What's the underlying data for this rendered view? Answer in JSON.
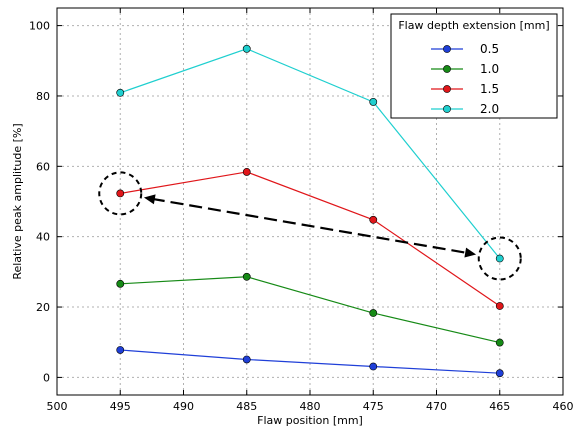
{
  "chart_data": {
    "type": "line",
    "x": [
      495,
      485,
      475,
      465
    ],
    "x_inverted": true,
    "xlim": [
      500,
      460
    ],
    "ylim": [
      -5,
      105
    ],
    "xticks": [
      500,
      495,
      490,
      485,
      480,
      475,
      470,
      465,
      460
    ],
    "yticks": [
      0,
      20,
      40,
      60,
      80,
      100
    ],
    "xlabel": "Flaw position [mm]",
    "ylabel": "Relative peak amplitude [%]",
    "grid": true,
    "legend": {
      "title": "Flaw depth extension [mm]",
      "placement": "top-right"
    },
    "series": [
      {
        "name": "0.5",
        "color": "#1f3fd8",
        "values": [
          7.8,
          5.1,
          3.1,
          1.2
        ]
      },
      {
        "name": "1.0",
        "color": "#168a16",
        "values": [
          26.6,
          28.6,
          18.3,
          9.9
        ]
      },
      {
        "name": "1.5",
        "color": "#e0161a",
        "values": [
          52.3,
          58.4,
          44.8,
          20.3
        ]
      },
      {
        "name": "2.0",
        "color": "#1fcfcf",
        "values": [
          80.9,
          93.4,
          78.3,
          33.8
        ]
      }
    ],
    "annotations": {
      "circles": [
        {
          "x": 495,
          "y": 52.3
        },
        {
          "x": 465,
          "y": 33.8
        }
      ],
      "arrow": {
        "from": {
          "x": 495,
          "y": 52.3
        },
        "to": {
          "x": 465,
          "y": 33.8
        },
        "style": "dashed",
        "double_headed": true
      }
    }
  }
}
